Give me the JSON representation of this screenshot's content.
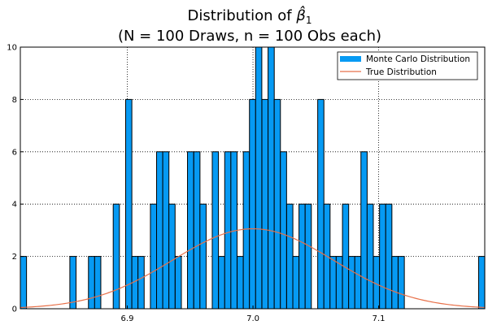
{
  "chart_data": {
    "type": "bar",
    "title_prefix": "Distribution of ",
    "title_symbol": "β̂",
    "title_subscript": "1",
    "subtitle": "(N = 100 Draws, n = 100 Obs each)",
    "xlabel": "",
    "ylabel": "",
    "xlim": [
      6.8149,
      6.986
    ],
    "ylim": [
      0,
      10
    ],
    "x_ticks": [
      6.9,
      7.0,
      7.1
    ],
    "x_tick_labels": [
      "6.9",
      "7.0",
      "7.1"
    ],
    "y_ticks": [
      0,
      2,
      4,
      6,
      8,
      10
    ],
    "y_tick_labels": [
      "0",
      "2",
      "4",
      "6",
      "8",
      "10"
    ],
    "grid": true,
    "legend_position": "top-right",
    "bar_color": "#069AF3",
    "curve_color": "#E8714A",
    "series": [
      {
        "name": "Monte Carlo Distribution",
        "kind": "histogram",
        "bin_width": 0.00493,
        "bin_starts": [
          6.8149,
          6.8543,
          6.8691,
          6.874,
          6.8888,
          6.8987,
          6.9036,
          6.9085,
          6.9184,
          6.9233,
          6.9282,
          6.9331,
          6.9381,
          6.9479,
          6.9529,
          6.9578,
          6.9676,
          6.9726,
          6.9775,
          6.9824,
          6.9874,
          6.9923,
          6.9972,
          7.0021,
          7.0071,
          7.012,
          7.0169,
          7.0218,
          7.0268,
          7.0317,
          7.0366,
          7.0415,
          7.0515,
          7.0564,
          7.0613,
          7.0662,
          7.0712,
          7.0761,
          7.081,
          7.0859,
          7.0908,
          7.0958,
          7.1007,
          7.1056,
          7.1105,
          7.1155,
          7.1795
        ],
        "counts": [
          2,
          2,
          2,
          2,
          4,
          8,
          2,
          2,
          4,
          6,
          6,
          4,
          2,
          6,
          6,
          4,
          6,
          2,
          6,
          6,
          2,
          6,
          8,
          10,
          8,
          10,
          8,
          6,
          4,
          2,
          4,
          4,
          8,
          4,
          2,
          2,
          4,
          2,
          2,
          6,
          4,
          2,
          4,
          4,
          2,
          2,
          2
        ]
      },
      {
        "name": "True Distribution",
        "kind": "curve",
        "mean": 7.0,
        "sd": 0.0641,
        "scale": 0.9963,
        "x_range": [
          6.8149,
          7.1844
        ]
      }
    ]
  }
}
